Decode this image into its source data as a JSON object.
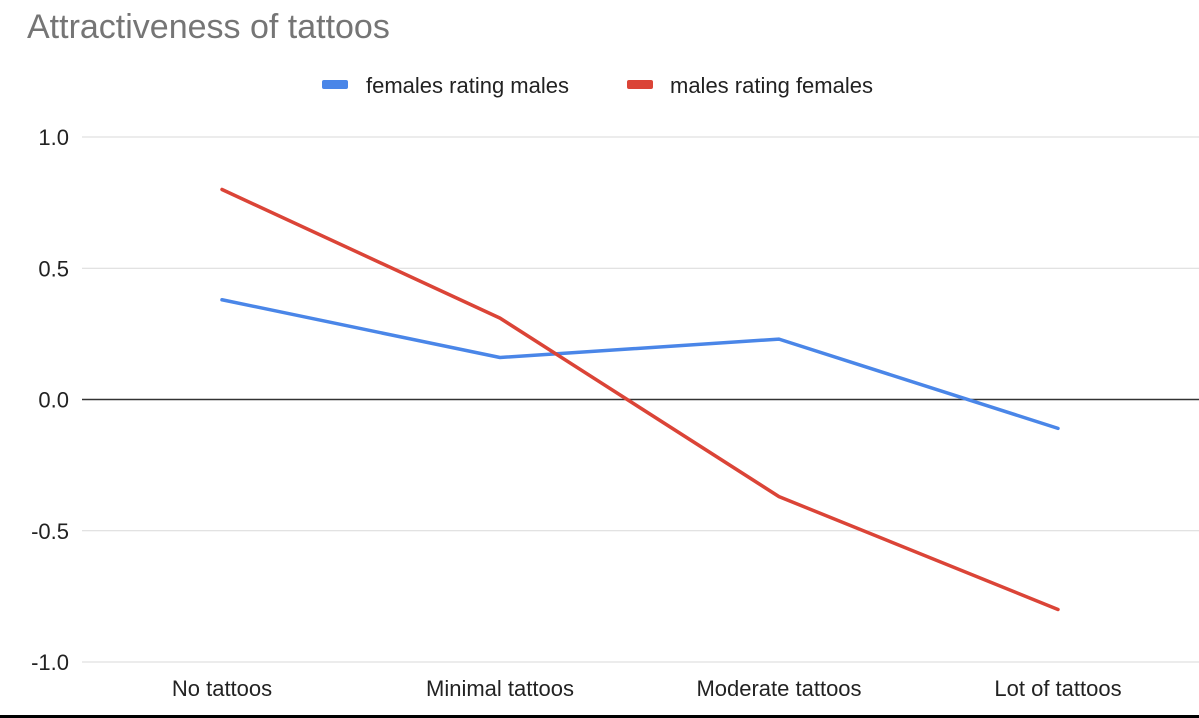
{
  "chart_data": {
    "type": "line",
    "title": "Attractiveness of tattoos",
    "xlabel": "",
    "ylabel": "",
    "categories": [
      "No tattoos",
      "Minimal tattoos",
      "Moderate tattoos",
      "Lot of tattoos"
    ],
    "ylim": [
      -1.0,
      1.0
    ],
    "yticks": [
      1.0,
      0.5,
      0.0,
      -0.5,
      -1.0
    ],
    "ytick_labels": [
      "1.0",
      "0.5",
      "0.0",
      "-0.5",
      "-1.0"
    ],
    "grid": true,
    "legend_position": "top",
    "series": [
      {
        "name": "females rating males",
        "color": "#4a86e8",
        "values": [
          0.38,
          0.16,
          0.23,
          -0.11
        ]
      },
      {
        "name": "males rating females",
        "color": "#db4437",
        "values": [
          0.8,
          0.31,
          -0.37,
          -0.8
        ]
      }
    ],
    "colors": {
      "grid": "#d9d9d9",
      "zero_line": "#333333",
      "title": "#757575",
      "text": "#222222"
    }
  }
}
